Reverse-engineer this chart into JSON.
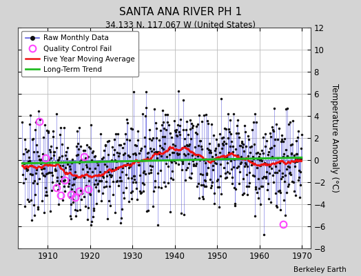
{
  "title": "SANTA ANA RIVER PH 1",
  "subtitle": "34.133 N, 117.067 W (United States)",
  "ylabel": "Temperature Anomaly (°C)",
  "credit": "Berkeley Earth",
  "xlim": [
    1903,
    1972
  ],
  "ylim": [
    -8,
    12
  ],
  "yticks": [
    -8,
    -6,
    -4,
    -2,
    0,
    2,
    4,
    6,
    8,
    10,
    12
  ],
  "xticks": [
    1910,
    1920,
    1930,
    1940,
    1950,
    1960,
    1970
  ],
  "bg_color": "#d4d4d4",
  "plot_bg_color": "#ffffff",
  "grid_color": "#bbbbbb",
  "raw_line_color": "#5555dd",
  "raw_marker_color": "#111111",
  "ma_color": "#ee1111",
  "trend_color": "#22bb22",
  "qc_color": "#ff44ff",
  "seed": 7,
  "n_months": 792,
  "start_year": 1904.0,
  "ma_window": 60,
  "qc_fail_times": [
    1908.0,
    1909.5,
    1912.0,
    1913.0,
    1914.0,
    1915.5,
    1916.5,
    1917.5,
    1918.5,
    1919.5,
    1965.5
  ],
  "qc_fail_values": [
    3.5,
    0.2,
    -2.5,
    -3.2,
    -1.8,
    -3.1,
    -3.4,
    -2.8,
    0.3,
    -2.6,
    -5.8
  ],
  "trend_slope": 0.008,
  "trend_intercept": -0.3
}
